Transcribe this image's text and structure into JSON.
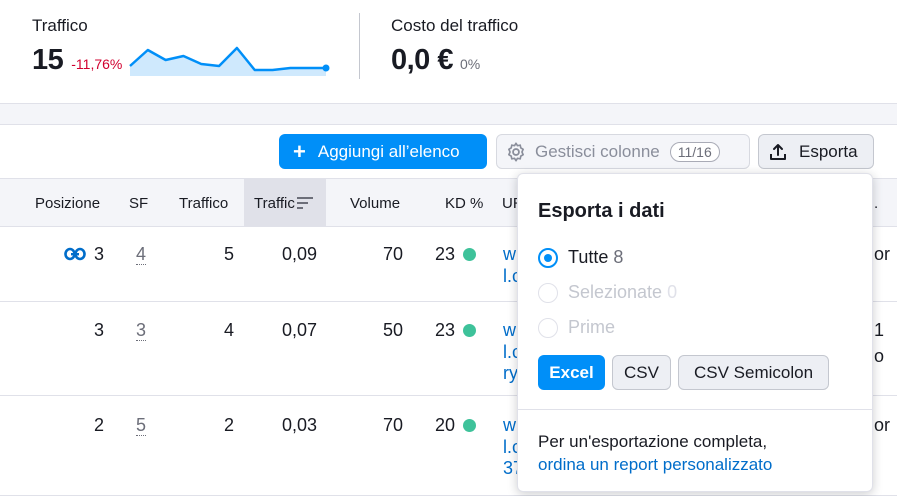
{
  "metrics": {
    "traffic": {
      "label": "Traffico",
      "value": "15",
      "delta": "-11,76%",
      "sparkline": [
        14,
        22,
        17,
        19,
        15,
        14,
        23,
        12,
        12,
        13,
        13,
        13
      ]
    },
    "cost": {
      "label": "Costo del traffico",
      "value": "0,0 €",
      "delta": "0%"
    }
  },
  "toolbar": {
    "add_label": "Aggiungi all’elenco",
    "manage_label": "Gestisci colonne",
    "manage_count": "11/16",
    "export_label": "Esporta"
  },
  "table": {
    "headers": {
      "position": "Posizione",
      "sf": "SF",
      "traffic": "Traffico",
      "traffic_pct": "Traffic",
      "volume": "Volume",
      "kd": "KD %",
      "url": "UR",
      "last": "."
    },
    "rows": [
      {
        "position": "3",
        "sf": "4",
        "traffic": "5",
        "traffic_pct": "0,09",
        "volume": "70",
        "kd": "23",
        "url_line1": "w",
        "url_line2": "l.c",
        "url_line3": "",
        "edge1": "or",
        "edge2": ""
      },
      {
        "position": "3",
        "sf": "3",
        "traffic": "4",
        "traffic_pct": "0,07",
        "volume": "50",
        "kd": "23",
        "url_line1": "w",
        "url_line2": "l.c",
        "url_line3": "ry",
        "edge1": "1",
        "edge2": "o"
      },
      {
        "position": "2",
        "sf": "5",
        "traffic": "2",
        "traffic_pct": "0,03",
        "volume": "70",
        "kd": "20",
        "url_line1": "w",
        "url_line2": "l.c",
        "url_line3": "37",
        "edge1": "or",
        "edge2": ""
      }
    ]
  },
  "export_popup": {
    "title": "Esporta i dati",
    "options": [
      {
        "label": "Tutte",
        "count": "8",
        "selected": true
      },
      {
        "label": "Selezionate",
        "count": "0",
        "selected": false
      },
      {
        "label": "Prime",
        "count": "",
        "selected": false
      }
    ],
    "formats": {
      "excel": "Excel",
      "csv": "CSV",
      "csv_semicolon": "CSV Semicolon"
    },
    "footer_text": "Per un'esportazione completa,",
    "footer_link": "ordina un report personalizzato"
  },
  "colors": {
    "primary": "#008ff8",
    "negative": "#d1002f",
    "kd_green": "#3ec29a",
    "link": "#006dca"
  }
}
